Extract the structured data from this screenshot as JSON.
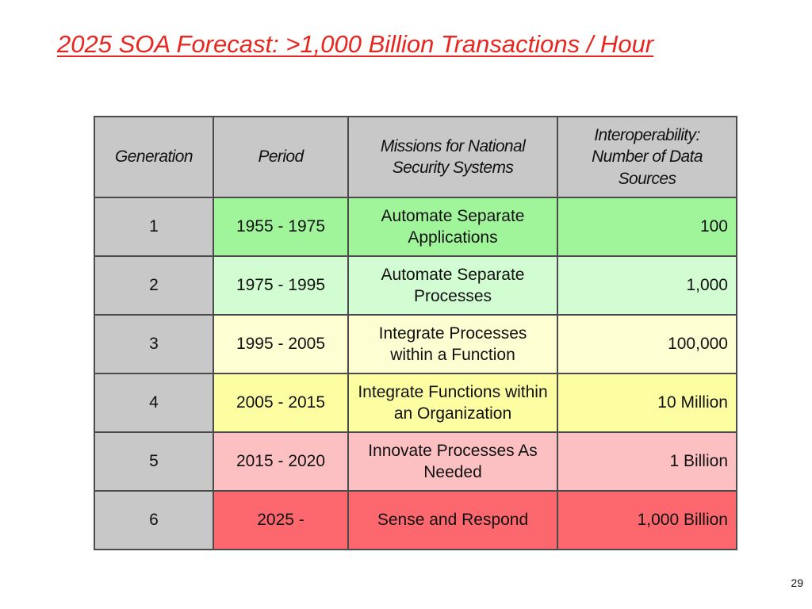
{
  "slide": {
    "title": "2025 SOA Forecast:  >1,000 Billion Transactions / Hour",
    "page_number": "29"
  },
  "table": {
    "headers": {
      "generation": "Generation",
      "period": "Period",
      "missions": "Missions for National Security Systems",
      "sources": "Interoperability: Number of Data Sources"
    },
    "rows": [
      {
        "generation": "1",
        "period": "1955 - 1975",
        "mission": "Automate Separate Applications",
        "sources": "100",
        "color": "#a0f59b"
      },
      {
        "generation": "2",
        "period": "1975 - 1995",
        "mission": "Automate Separate Processes",
        "sources": "1,000",
        "color": "#d2fcd2"
      },
      {
        "generation": "3",
        "period": "1995 - 2005",
        "mission": "Integrate Processes within a Function",
        "sources": "100,000",
        "color": "#fefed3"
      },
      {
        "generation": "4",
        "period": "2005 - 2015",
        "mission": "Integrate Functions within an Organization",
        "sources": "10 Million",
        "color": "#fdfda2"
      },
      {
        "generation": "5",
        "period": "2015 - 2020",
        "mission": "Innovate Processes As Needed",
        "sources": "1 Billion",
        "color": "#fcc0c2"
      },
      {
        "generation": "6",
        "period": "2025 -",
        "mission": "Sense and Respond",
        "sources": "1,000 Billion",
        "color": "#fc686e"
      }
    ]
  },
  "colors": {
    "title": "#e8261f",
    "header_bg": "#c8c8c8",
    "border": "#4b4b4b"
  }
}
